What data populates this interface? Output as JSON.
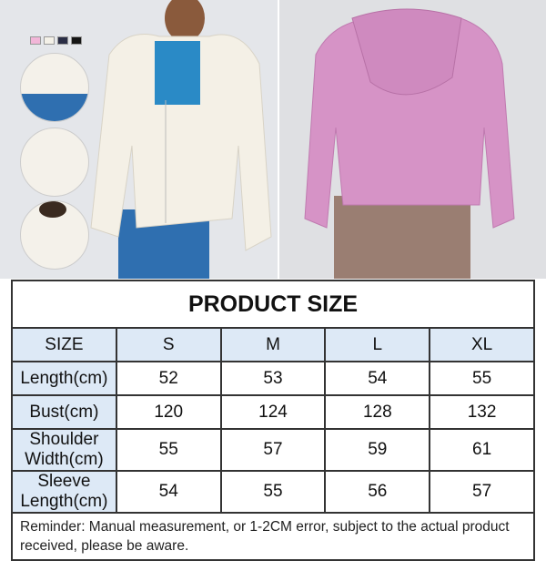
{
  "swatch_colors": [
    "#f2b6d8",
    "#f4f1e8",
    "#2a2d45",
    "#151515"
  ],
  "colors": {
    "header_bg": "#dde9f6",
    "border": "#333333",
    "cream_hoodie": "#f4f0e6",
    "pink_hoodie": "#d693c6"
  },
  "size_table": {
    "title": "PRODUCT SIZE",
    "header": [
      "SIZE",
      "S",
      "M",
      "L",
      "XL"
    ],
    "rows": [
      {
        "label": "Length(cm)",
        "values": [
          "52",
          "53",
          "54",
          "55"
        ]
      },
      {
        "label": "Bust(cm)",
        "values": [
          "120",
          "124",
          "128",
          "132"
        ]
      },
      {
        "label": "Shoulder Width(cm)",
        "values": [
          "55",
          "57",
          "59",
          "61"
        ]
      },
      {
        "label": "Sleeve Length(cm)",
        "values": [
          "54",
          "55",
          "56",
          "57"
        ]
      }
    ],
    "reminder": "Reminder: Manual measurement, or 1-2CM error, subject to the actual product received, please be aware."
  }
}
